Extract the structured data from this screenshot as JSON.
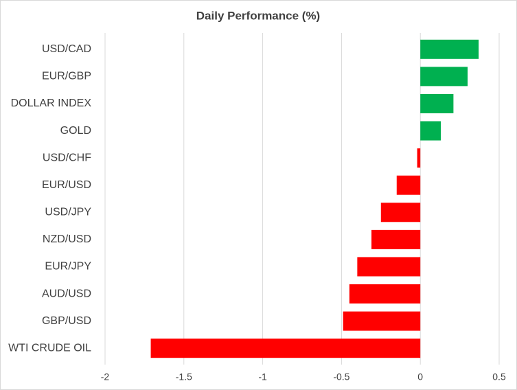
{
  "chart_data": {
    "type": "hbar",
    "title": "Daily Performance  (%)",
    "categories": [
      "USD/CAD",
      "EUR/GBP",
      "DOLLAR INDEX",
      "GOLD",
      "USD/CHF",
      "EUR/USD",
      "USD/JPY",
      "NZD/USD",
      "EUR/JPY",
      "AUD/USD",
      "GBP/USD",
      "WTI CRUDE OIL"
    ],
    "values": [
      0.37,
      0.3,
      0.21,
      0.13,
      -0.02,
      -0.15,
      -0.25,
      -0.31,
      -0.4,
      -0.45,
      -0.49,
      -1.71
    ],
    "colors": [
      "#00b050",
      "#00b050",
      "#00b050",
      "#00b050",
      "#ff0000",
      "#ff0000",
      "#ff0000",
      "#ff0000",
      "#ff0000",
      "#ff0000",
      "#ff0000",
      "#ff0000"
    ],
    "xlim": [
      -2,
      0.5
    ],
    "xticks": [
      -2,
      -1.5,
      -1,
      -0.5,
      0,
      0.5
    ],
    "grid": true
  }
}
